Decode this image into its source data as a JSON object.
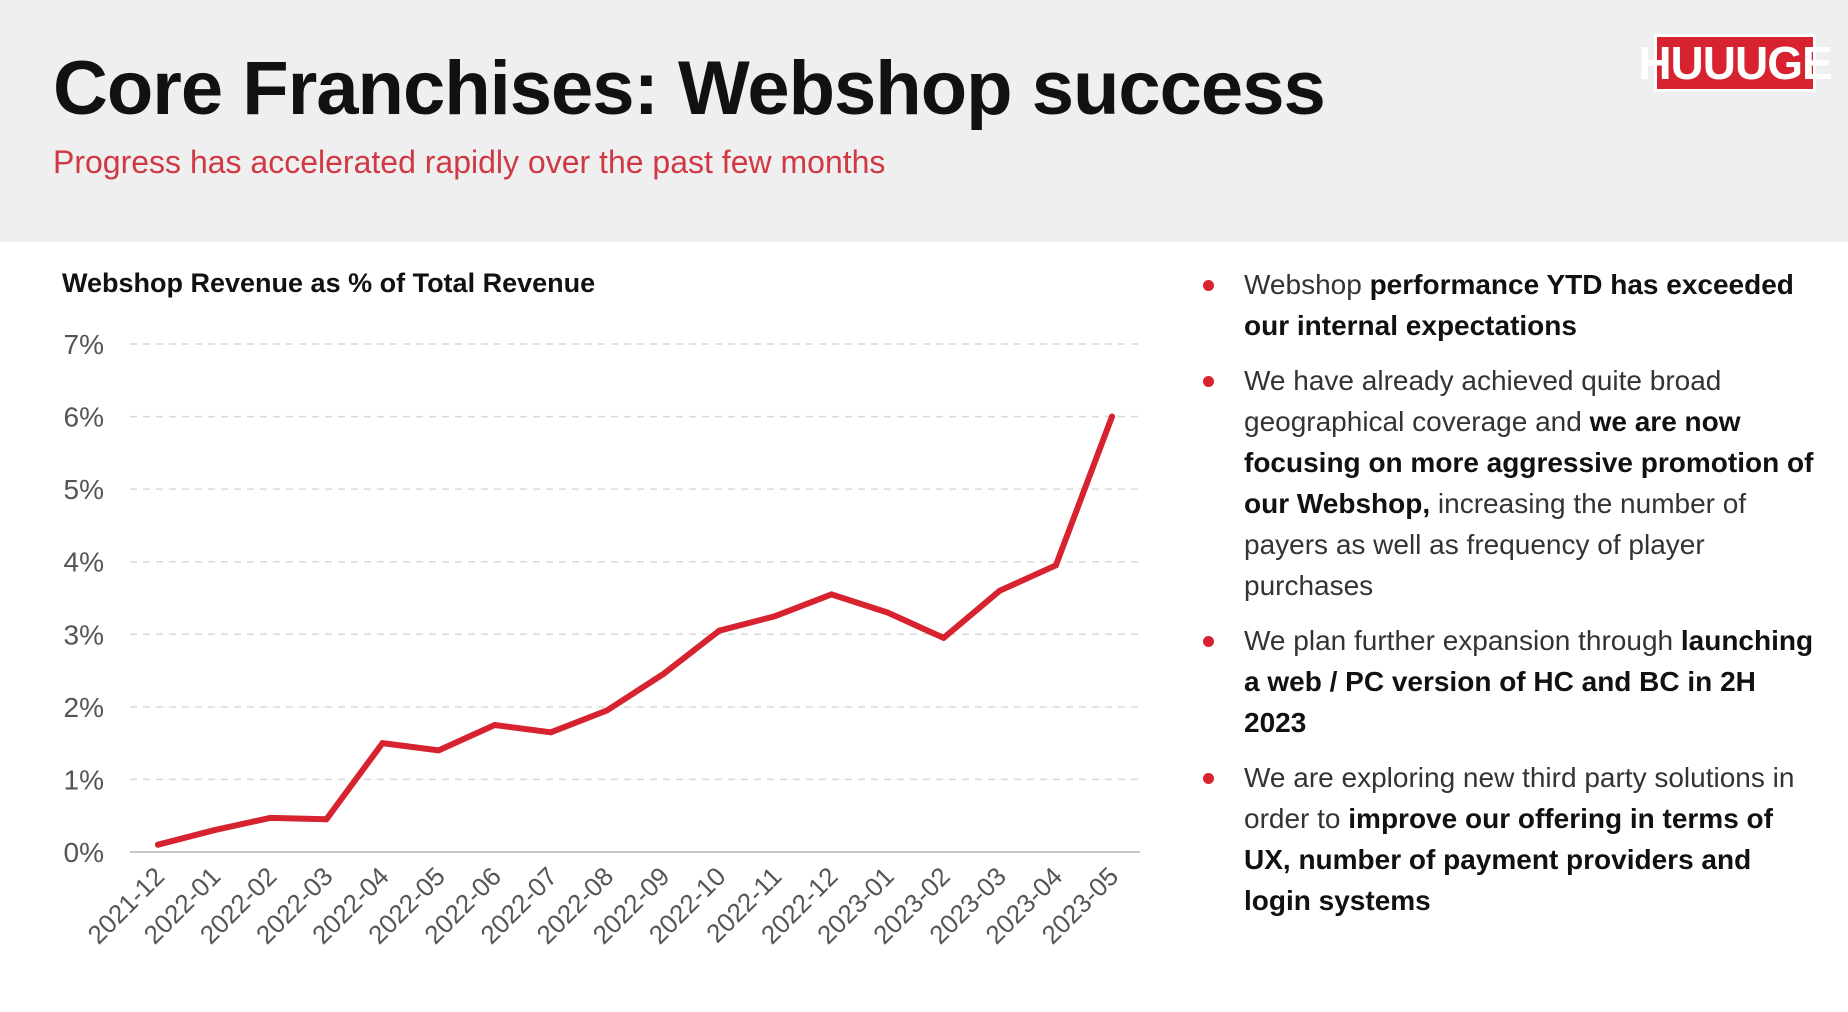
{
  "header": {
    "title": "Core Franchises: Webshop success",
    "subtitle": "Progress has accelerated rapidly over the past few months",
    "logo_text": "HUUUGE"
  },
  "bullets": [
    [
      {
        "text": "Webshop ",
        "bold": false
      },
      {
        "text": "performance YTD has exceeded our internal expectations",
        "bold": true
      }
    ],
    [
      {
        "text": "We have already achieved quite broad geographical coverage and ",
        "bold": false
      },
      {
        "text": "we are now focusing on more aggressive promotion of our Webshop,",
        "bold": true
      },
      {
        "text": " increasing the number of payers as well as frequency of player purchases",
        "bold": false
      }
    ],
    [
      {
        "text": "We plan further expansion through ",
        "bold": false
      },
      {
        "text": "launching a web / PC version of HC and BC in 2H 2023",
        "bold": true
      }
    ],
    [
      {
        "text": "We are exploring new third party solutions in order to ",
        "bold": false
      },
      {
        "text": "improve our offering in terms of UX, number of payment providers and login systems",
        "bold": true
      }
    ]
  ],
  "colors": {
    "accent": "#d7232f",
    "subtitle": "#d03844",
    "header_bg": "#efefef",
    "grid": "#d9d9d9",
    "tick_text": "#555555"
  },
  "chart_data": {
    "type": "line",
    "title": "Webshop Revenue as % of Total Revenue",
    "categories": [
      "2021-12",
      "2022-01",
      "2022-02",
      "2022-03",
      "2022-04",
      "2022-05",
      "2022-06",
      "2022-07",
      "2022-08",
      "2022-09",
      "2022-10",
      "2022-11",
      "2022-12",
      "2023-01",
      "2023-02",
      "2023-03",
      "2023-04",
      "2023-05"
    ],
    "series": [
      {
        "values": [
          0.1,
          0.3,
          0.47,
          0.45,
          1.5,
          1.4,
          1.75,
          1.65,
          1.95,
          2.45,
          3.05,
          3.25,
          3.55,
          3.3,
          2.95,
          3.6,
          3.95,
          6.0
        ]
      }
    ],
    "ylim": [
      0,
      7
    ],
    "yticks": [
      0,
      1,
      2,
      3,
      4,
      5,
      6,
      7
    ],
    "ytick_labels": [
      "0%",
      "1%",
      "2%",
      "3%",
      "4%",
      "5%",
      "6%",
      "7%"
    ],
    "xlabel": "",
    "ylabel": "",
    "grid": "horizontal-dashed",
    "legend": "none"
  }
}
